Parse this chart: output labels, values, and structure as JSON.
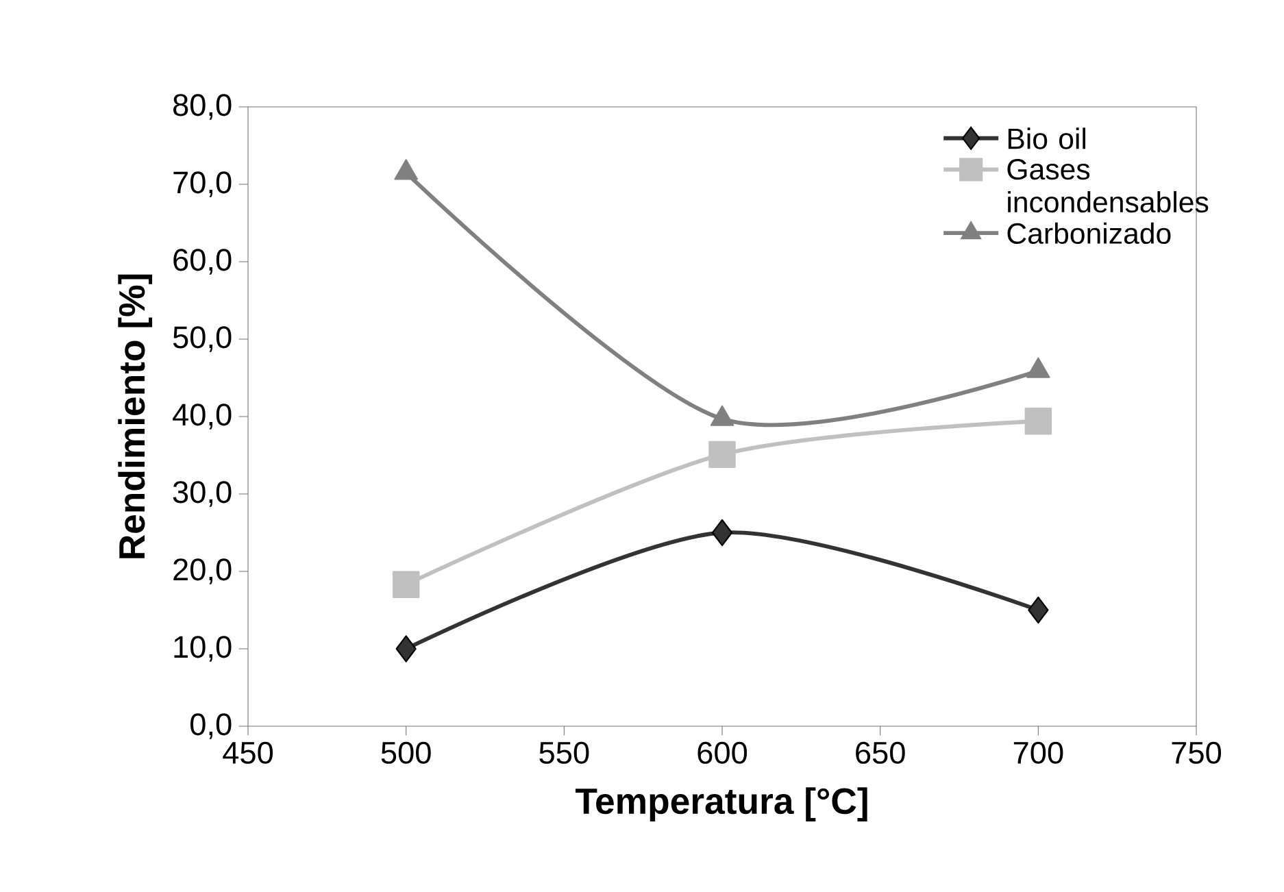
{
  "chart_data": {
    "type": "line",
    "xlabel": "Temperatura [°C]",
    "ylabel": "Rendimiento [%]",
    "x": [
      500,
      600,
      700
    ],
    "series": [
      {
        "name": "Bio oil",
        "color": "#333333",
        "marker": "diamond",
        "values": [
          10.0,
          25.0,
          15.0
        ]
      },
      {
        "name": "Gases incondensables",
        "color": "#c0c0c0",
        "marker": "square",
        "values": [
          18.3,
          35.1,
          39.4
        ]
      },
      {
        "name": "Carbonizado",
        "color": "#808080",
        "marker": "triangle",
        "values": [
          71.5,
          39.7,
          45.9
        ]
      }
    ],
    "xlim": [
      450,
      750
    ],
    "xticks": [
      450,
      500,
      550,
      600,
      650,
      700,
      750
    ],
    "ylim": [
      0,
      80
    ],
    "yticks": [
      {
        "value": 0,
        "label": "0,0"
      },
      {
        "value": 10,
        "label": "10,0"
      },
      {
        "value": 20,
        "label": "20,0"
      },
      {
        "value": 30,
        "label": "30,0"
      },
      {
        "value": 40,
        "label": "40,0"
      },
      {
        "value": 50,
        "label": "50,0"
      },
      {
        "value": 60,
        "label": "60,0"
      },
      {
        "value": 70,
        "label": "70,0"
      },
      {
        "value": 80,
        "label": "80,0"
      }
    ],
    "grid": false,
    "legend": "top right",
    "line_style": "solid"
  }
}
